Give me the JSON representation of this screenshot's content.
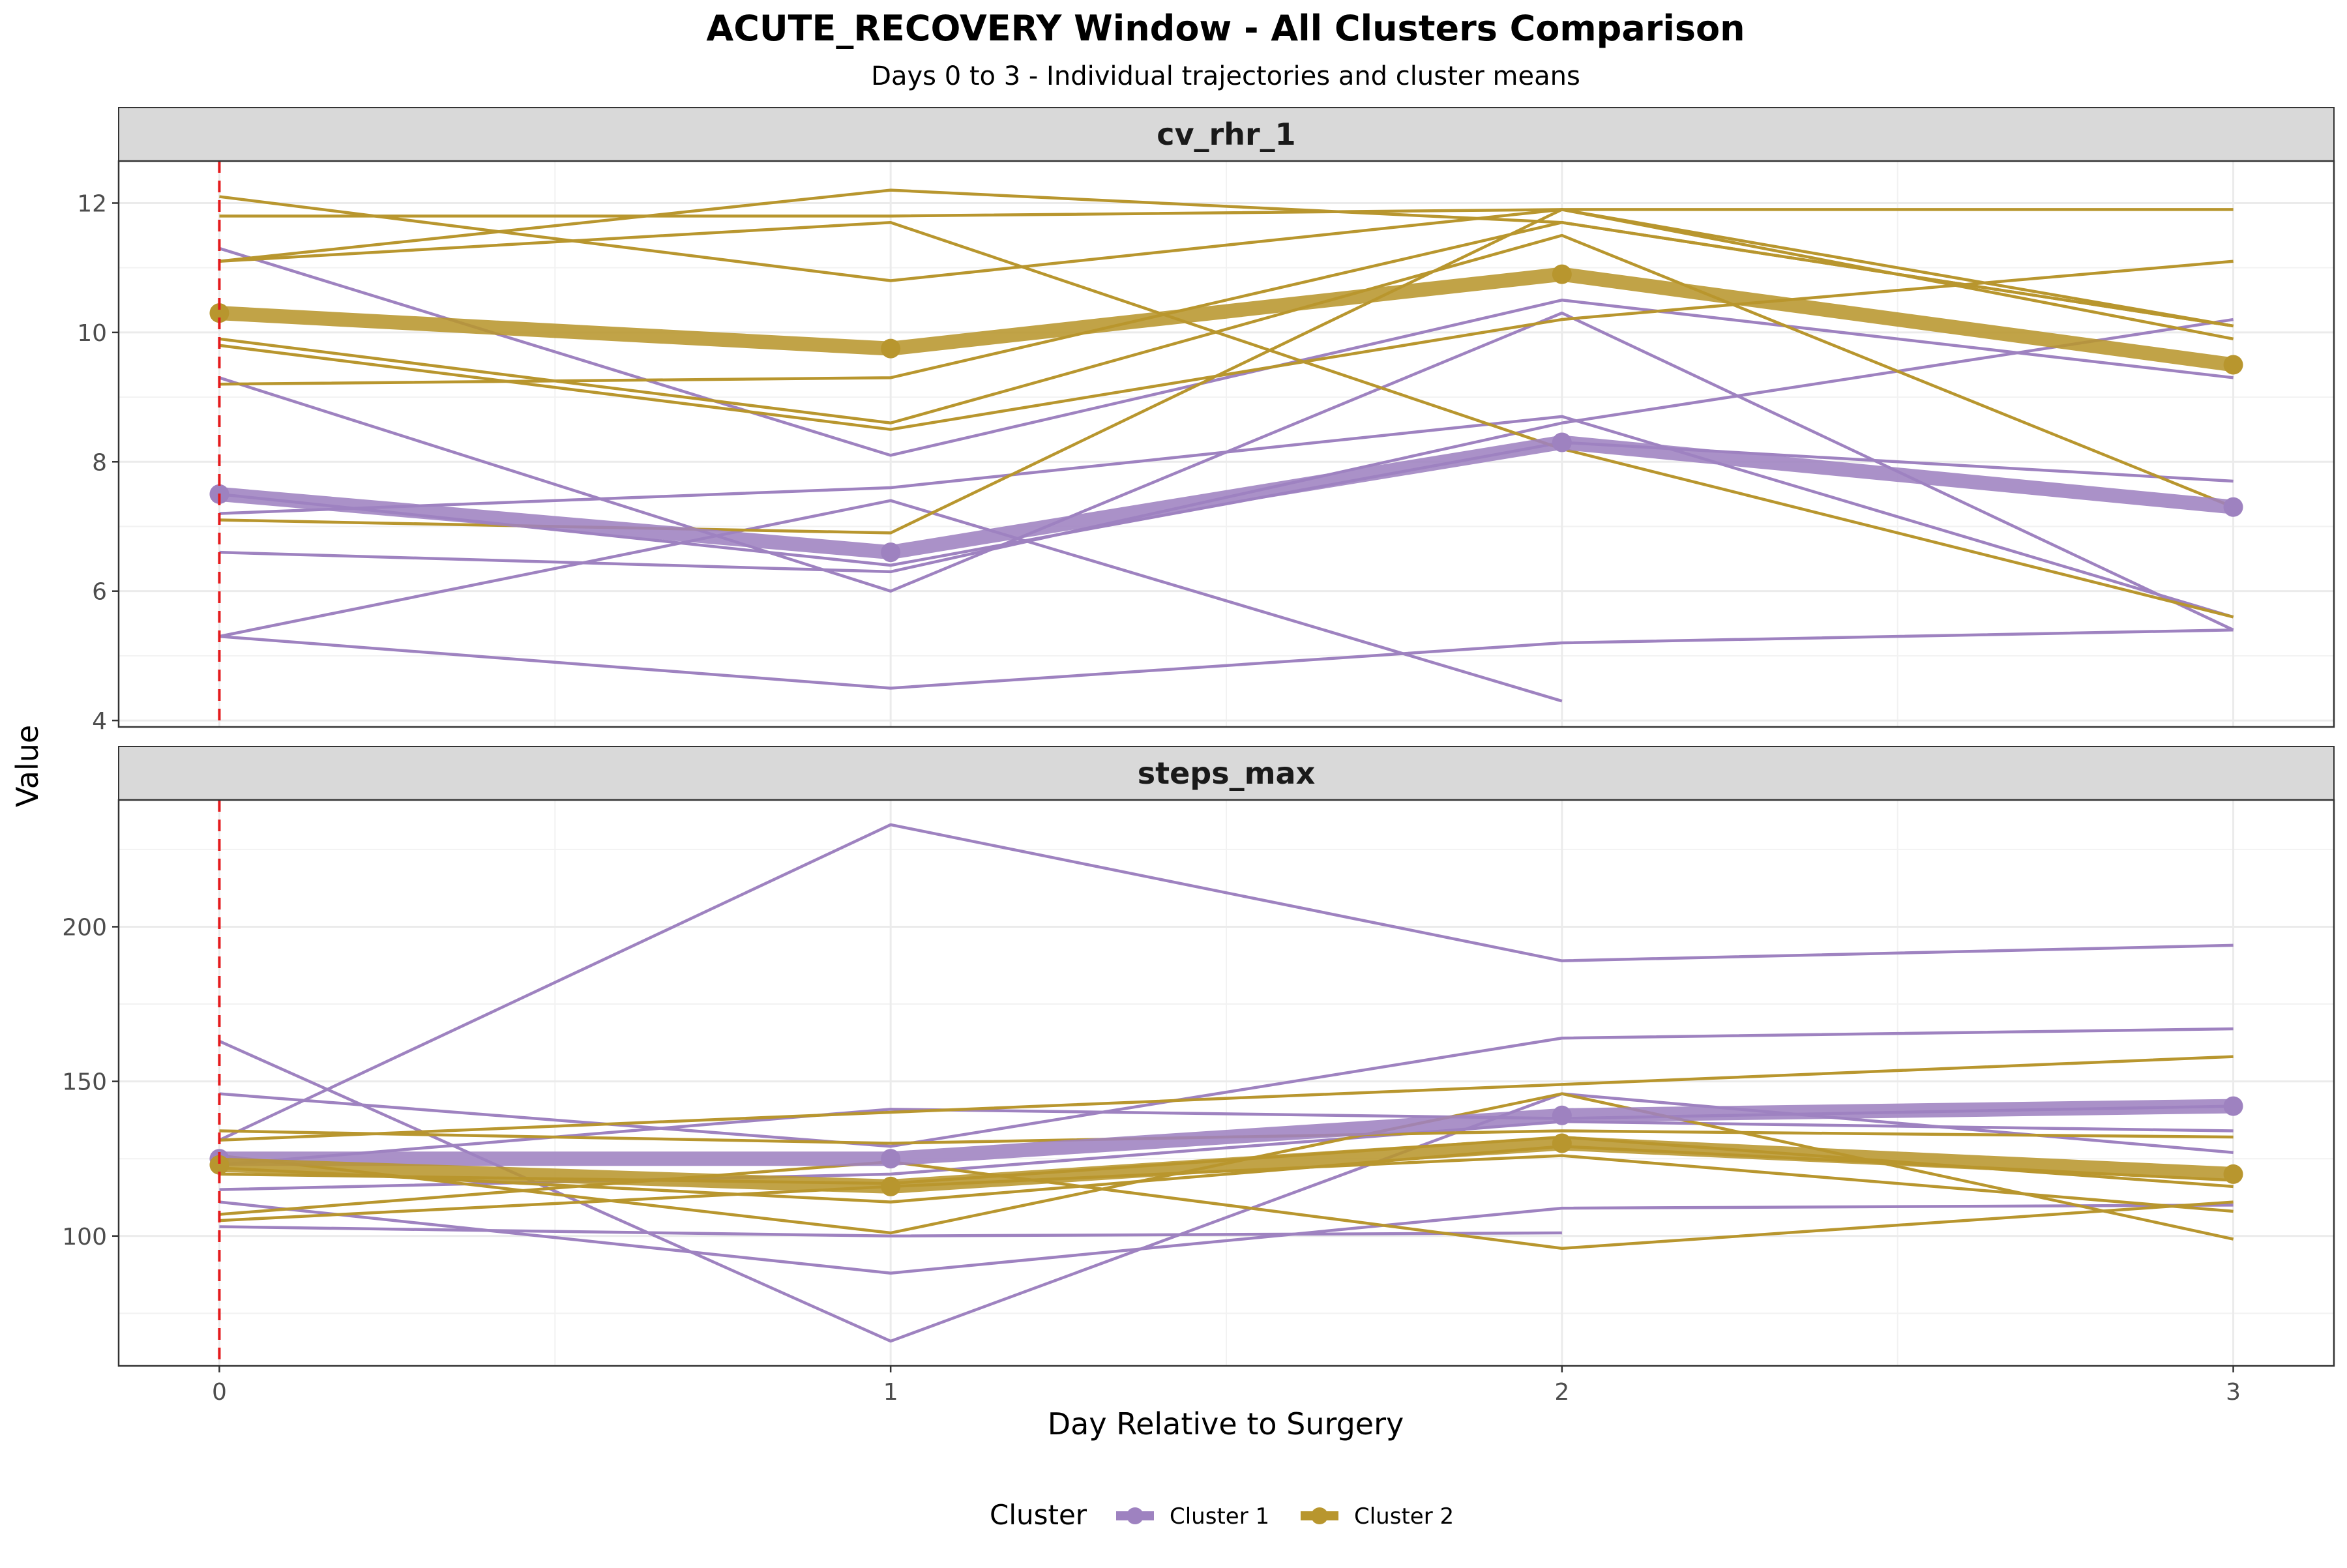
{
  "chart_data": {
    "type": "line",
    "title": "ACUTE_RECOVERY Window - All Clusters Comparison",
    "subtitle": "Days 0 to 3 - Individual trajectories and cluster means",
    "xlabel": "Day Relative to Surgery",
    "ylabel": "Value",
    "x": [
      0,
      1,
      2,
      3
    ],
    "x_ticks": [
      "0",
      "1",
      "2",
      "3"
    ],
    "reference_line": {
      "x": 0,
      "color": "#e41a1c",
      "style": "dashed"
    },
    "grid": true,
    "legend": {
      "title": "Cluster",
      "placement": "bottom",
      "entries": [
        {
          "name": "Cluster 1",
          "color": "#9e82c0"
        },
        {
          "name": "Cluster 2",
          "color": "#b8962e"
        }
      ]
    },
    "panels": [
      {
        "name": "cv_rhr_1",
        "ylim": [
          3.9,
          12.65
        ],
        "y_ticks": [
          4,
          6,
          8,
          10,
          12
        ],
        "series": [
          {
            "cluster": "Cluster 1",
            "role": "individual",
            "values": [
              11.3,
              8.1,
              10.5,
              9.3
            ]
          },
          {
            "cluster": "Cluster 1",
            "role": "individual",
            "values": [
              9.3,
              6.0,
              10.3,
              5.4
            ]
          },
          {
            "cluster": "Cluster 1",
            "role": "individual",
            "values": [
              7.2,
              7.6,
              8.7,
              5.6
            ]
          },
          {
            "cluster": "Cluster 1",
            "role": "individual",
            "values": [
              6.6,
              6.3,
              8.6,
              10.2
            ]
          },
          {
            "cluster": "Cluster 1",
            "role": "individual",
            "values": [
              5.3,
              7.4,
              4.3,
              null
            ]
          },
          {
            "cluster": "Cluster 1",
            "role": "individual",
            "values": [
              5.3,
              4.5,
              5.2,
              5.4
            ]
          },
          {
            "cluster": "Cluster 1",
            "role": "individual",
            "values": [
              7.5,
              6.4,
              8.3,
              7.7
            ]
          },
          {
            "cluster": "Cluster 2",
            "role": "individual",
            "values": [
              12.1,
              10.8,
              11.9,
              9.9
            ]
          },
          {
            "cluster": "Cluster 2",
            "role": "individual",
            "values": [
              11.8,
              11.8,
              11.9,
              11.9
            ]
          },
          {
            "cluster": "Cluster 2",
            "role": "individual",
            "values": [
              11.1,
              12.2,
              11.7,
              10.1
            ]
          },
          {
            "cluster": "Cluster 2",
            "role": "individual",
            "values": [
              11.1,
              11.7,
              8.2,
              5.6
            ]
          },
          {
            "cluster": "Cluster 2",
            "role": "individual",
            "values": [
              9.9,
              8.6,
              11.5,
              7.3
            ]
          },
          {
            "cluster": "Cluster 2",
            "role": "individual",
            "values": [
              9.8,
              8.5,
              10.2,
              11.1
            ]
          },
          {
            "cluster": "Cluster 2",
            "role": "individual",
            "values": [
              9.2,
              9.3,
              11.7,
              10.1
            ]
          },
          {
            "cluster": "Cluster 2",
            "role": "individual",
            "values": [
              7.1,
              6.9,
              11.9,
              10.1
            ]
          },
          {
            "cluster": "Cluster 1",
            "role": "mean",
            "values": [
              7.5,
              6.6,
              8.3,
              7.3
            ]
          },
          {
            "cluster": "Cluster 2",
            "role": "mean",
            "values": [
              10.3,
              9.75,
              10.9,
              9.5
            ]
          }
        ]
      },
      {
        "name": "steps_max",
        "ylim": [
          58,
          241
        ],
        "y_ticks": [
          100,
          150,
          200
        ],
        "series": [
          {
            "cluster": "Cluster 1",
            "role": "individual",
            "values": [
              131,
              233,
              189,
              194
            ]
          },
          {
            "cluster": "Cluster 1",
            "role": "individual",
            "values": [
              163,
              66,
              146,
              127
            ]
          },
          {
            "cluster": "Cluster 1",
            "role": "individual",
            "values": [
              146,
              129,
              164,
              167
            ]
          },
          {
            "cluster": "Cluster 1",
            "role": "individual",
            "values": [
              115,
              120,
              137,
              134
            ]
          },
          {
            "cluster": "Cluster 1",
            "role": "individual",
            "values": [
              111,
              88,
              109,
              110
            ]
          },
          {
            "cluster": "Cluster 1",
            "role": "individual",
            "values": [
              103,
              100,
              101,
              null
            ]
          },
          {
            "cluster": "Cluster 1",
            "role": "individual",
            "values": [
              123,
              141,
              138,
              142
            ]
          },
          {
            "cluster": "Cluster 2",
            "role": "individual",
            "values": [
              134,
              130,
              134,
              132
            ]
          },
          {
            "cluster": "Cluster 2",
            "role": "individual",
            "values": [
              131,
              140,
              149,
              158
            ]
          },
          {
            "cluster": "Cluster 2",
            "role": "individual",
            "values": [
              126,
              101,
              146,
              99
            ]
          },
          {
            "cluster": "Cluster 2",
            "role": "individual",
            "values": [
              122,
              111,
              129,
              118
            ]
          },
          {
            "cluster": "Cluster 2",
            "role": "individual",
            "values": [
              107,
              124,
              96,
              111
            ]
          },
          {
            "cluster": "Cluster 2",
            "role": "individual",
            "values": [
              105,
              116,
              126,
              108
            ]
          },
          {
            "cluster": "Cluster 2",
            "role": "individual",
            "values": [
              120,
              117,
              132,
              116
            ]
          },
          {
            "cluster": "Cluster 1",
            "role": "mean",
            "values": [
              125,
              125,
              139,
              142
            ]
          },
          {
            "cluster": "Cluster 2",
            "role": "mean",
            "values": [
              123,
              116,
              130,
              120
            ]
          }
        ]
      }
    ]
  }
}
